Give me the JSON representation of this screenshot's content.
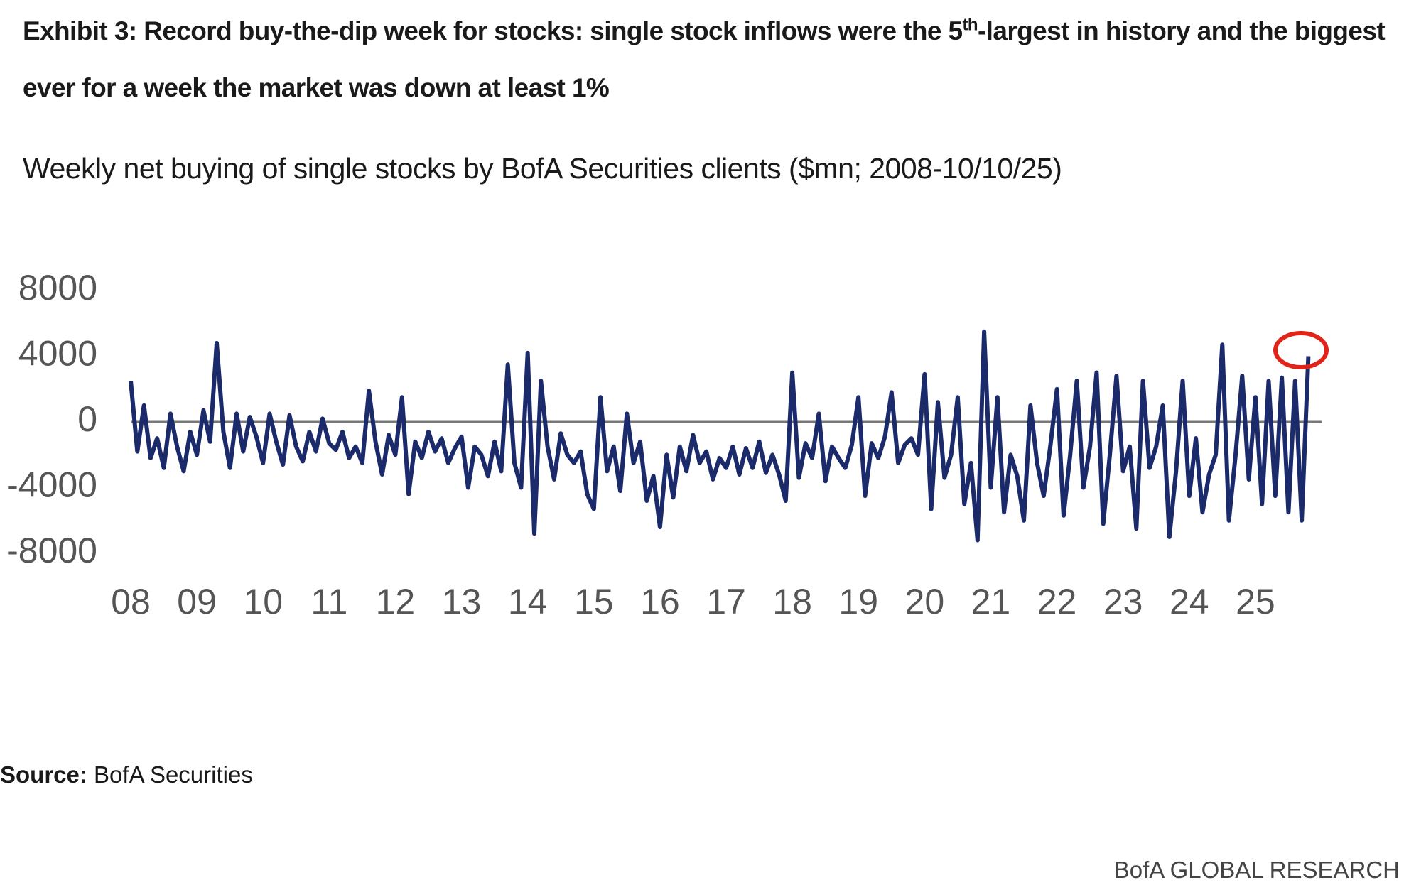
{
  "chart_data": {
    "type": "line",
    "title": [
      "Exhibit 3: Record buy-the-dip week for stocks: single stock inflows were the 5",
      "th",
      "-largest in history and the biggest ever for a week the market was down at least 1%"
    ],
    "subtitle": "Weekly net buying of single stocks by BofA Securities clients ($mn; 2008-10/10/25)",
    "source_label": "Source:",
    "source": "BofA Securities",
    "footer": "BofA GLOBAL RESEARCH",
    "color": "#1b2a6b",
    "xlim": [
      2008,
      2026
    ],
    "ylim": [
      -8000,
      8000
    ],
    "yticks": [
      -8000,
      -4000,
      0,
      4000,
      8000
    ],
    "xticks": [
      {
        "value": 2008,
        "label": "08"
      },
      {
        "value": 2009,
        "label": "09"
      },
      {
        "value": 2010,
        "label": "10"
      },
      {
        "value": 2011,
        "label": "11"
      },
      {
        "value": 2012,
        "label": "12"
      },
      {
        "value": 2013,
        "label": "13"
      },
      {
        "value": 2014,
        "label": "14"
      },
      {
        "value": 2015,
        "label": "15"
      },
      {
        "value": 2016,
        "label": "16"
      },
      {
        "value": 2017,
        "label": "17"
      },
      {
        "value": 2018,
        "label": "18"
      },
      {
        "value": 2019,
        "label": "19"
      },
      {
        "value": 2020,
        "label": "20"
      },
      {
        "value": 2021,
        "label": "21"
      },
      {
        "value": 2022,
        "label": "22"
      },
      {
        "value": 2023,
        "label": "23"
      },
      {
        "value": 2024,
        "label": "24"
      },
      {
        "value": 2025,
        "label": "25"
      }
    ],
    "x": [
      2008,
      2008.1,
      2008.2,
      2008.3,
      2008.4,
      2008.5,
      2008.6,
      2008.7,
      2008.8,
      2008.9,
      2009,
      2009.1,
      2009.2,
      2009.3,
      2009.4,
      2009.5,
      2009.6,
      2009.7,
      2009.8,
      2009.9,
      2010,
      2010.1,
      2010.2,
      2010.3,
      2010.4,
      2010.5,
      2010.6,
      2010.7,
      2010.8,
      2010.9,
      2011,
      2011.1,
      2011.2,
      2011.3,
      2011.4,
      2011.5,
      2011.6,
      2011.7,
      2011.8,
      2011.9,
      2012,
      2012.1,
      2012.2,
      2012.3,
      2012.4,
      2012.5,
      2012.6,
      2012.7,
      2012.8,
      2012.9,
      2013,
      2013.1,
      2013.2,
      2013.3,
      2013.4,
      2013.5,
      2013.6,
      2013.7,
      2013.8,
      2013.9,
      2014,
      2014.1,
      2014.2,
      2014.3,
      2014.4,
      2014.5,
      2014.6,
      2014.7,
      2014.8,
      2014.9,
      2015,
      2015.1,
      2015.2,
      2015.3,
      2015.4,
      2015.5,
      2015.6,
      2015.7,
      2015.8,
      2015.9,
      2016,
      2016.1,
      2016.2,
      2016.3,
      2016.4,
      2016.5,
      2016.6,
      2016.7,
      2016.8,
      2016.9,
      2017,
      2017.1,
      2017.2,
      2017.3,
      2017.4,
      2017.5,
      2017.6,
      2017.7,
      2017.8,
      2017.9,
      2018,
      2018.1,
      2018.2,
      2018.3,
      2018.4,
      2018.5,
      2018.6,
      2018.7,
      2018.8,
      2018.9,
      2019,
      2019.1,
      2019.2,
      2019.3,
      2019.4,
      2019.5,
      2019.6,
      2019.7,
      2019.8,
      2019.9,
      2020,
      2020.1,
      2020.2,
      2020.3,
      2020.4,
      2020.5,
      2020.6,
      2020.7,
      2020.8,
      2020.9,
      2021,
      2021.1,
      2021.2,
      2021.3,
      2021.4,
      2021.5,
      2021.6,
      2021.7,
      2021.8,
      2021.9,
      2022,
      2022.1,
      2022.2,
      2022.3,
      2022.4,
      2022.5,
      2022.6,
      2022.7,
      2022.8,
      2022.9,
      2023,
      2023.1,
      2023.2,
      2023.3,
      2023.4,
      2023.5,
      2023.6,
      2023.7,
      2023.8,
      2023.9,
      2024,
      2024.1,
      2024.2,
      2024.3,
      2024.4,
      2024.5,
      2024.6,
      2024.7,
      2024.8,
      2024.9,
      2025,
      2025.1,
      2025.2,
      2025.3,
      2025.4,
      2025.5,
      2025.6,
      2025.7,
      2025.8
    ],
    "values": [
      2500,
      -1800,
      1000,
      -2200,
      -1000,
      -2800,
      500,
      -1500,
      -3000,
      -600,
      -2000,
      700,
      -1200,
      4800,
      -600,
      -2800,
      500,
      -1800,
      300,
      -900,
      -2500,
      500,
      -1200,
      -2600,
      400,
      -1500,
      -2400,
      -600,
      -1800,
      200,
      -1300,
      -1700,
      -600,
      -2200,
      -1500,
      -2500,
      1900,
      -1200,
      -3200,
      -800,
      -2000,
      1500,
      -4400,
      -1200,
      -2200,
      -600,
      -1800,
      -1000,
      -2500,
      -1600,
      -900,
      -4000,
      -1500,
      -2000,
      -3300,
      -1200,
      -3000,
      3500,
      -2500,
      -4000,
      4200,
      -6800,
      2500,
      -1500,
      -3500,
      -700,
      -2000,
      -2500,
      -1800,
      -4400,
      -5300,
      1500,
      -3000,
      -1500,
      -4200,
      500,
      -2500,
      -1200,
      -4800,
      -3300,
      -6400,
      -2000,
      -4600,
      -1500,
      -3000,
      -800,
      -2500,
      -1800,
      -3500,
      -2200,
      -2800,
      -1500,
      -3200,
      -1600,
      -2800,
      -1200,
      -3100,
      -2000,
      -3200,
      -4800,
      3000,
      -3400,
      -1300,
      -2200,
      500,
      -3600,
      -1500,
      -2200,
      -2800,
      -1400,
      1500,
      -4500,
      -1300,
      -2200,
      -900,
      1800,
      -2500,
      -1400,
      -1000,
      -2000,
      2900,
      -5300,
      1200,
      -3400,
      -2000,
      1500,
      -5000,
      -2500,
      -7200,
      5500,
      -4000,
      1500,
      -5500,
      -2000,
      -3300,
      -6000,
      1000,
      -2500,
      -4500,
      -1500,
      2000,
      -5700,
      -2000,
      2500,
      -4000,
      -1500,
      3000,
      -6200,
      -2000,
      2800,
      -3000,
      -1500,
      -6500,
      2500,
      -2800,
      -1500,
      1000,
      -7000,
      -3000,
      2500,
      -4500,
      -1000,
      -5500,
      -3200,
      -2000,
      4700,
      -6000,
      -2000,
      2800,
      -3500,
      1500,
      -5000,
      2500,
      -4500,
      2700,
      -5500,
      2500,
      -6000,
      4000
    ]
  }
}
